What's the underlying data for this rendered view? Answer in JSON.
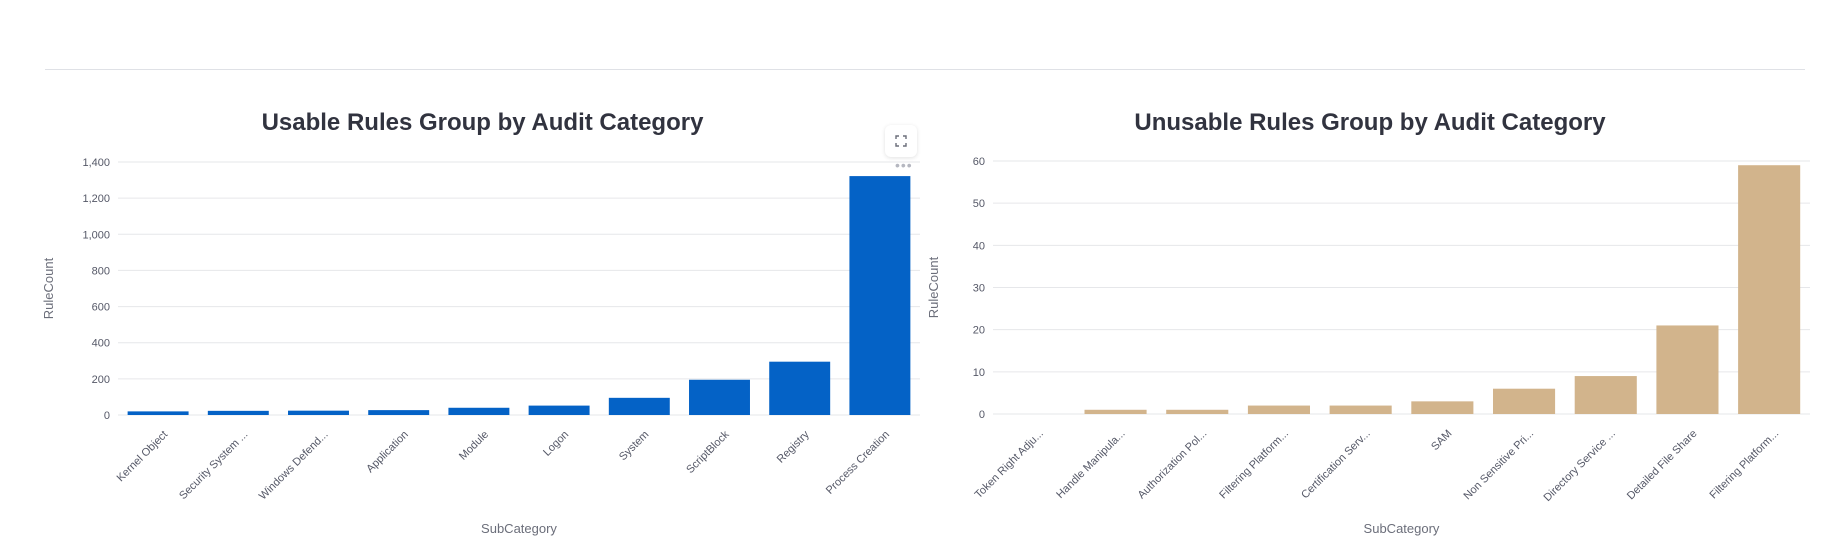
{
  "chart_data": [
    {
      "type": "bar",
      "title": "Usable Rules Group by Audit Category",
      "xlabel": "SubCategory",
      "ylabel": "RuleCount",
      "categories": [
        "Kernel Object",
        "Security System ...",
        "Windows Defend...",
        "Application",
        "Module",
        "Logon",
        "System",
        "ScriptBlock",
        "Registry",
        "Process Creation"
      ],
      "values": [
        20,
        23,
        24,
        27,
        40,
        52,
        95,
        195,
        295,
        1322
      ],
      "ylim": [
        0,
        1400
      ],
      "yticks": [
        0,
        200,
        400,
        600,
        800,
        1000,
        1200,
        1400
      ],
      "ytick_labels": [
        "0",
        "200",
        "400",
        "600",
        "800",
        "1,000",
        "1,200",
        "1,400"
      ],
      "color": "#0462c6",
      "grid": true
    },
    {
      "type": "bar",
      "title": "Unusable Rules Group by Audit Category",
      "xlabel": "SubCategory",
      "ylabel": "RuleCount",
      "categories": [
        "Token Right Adju...",
        "Handle Manipula...",
        "Authorization Pol...",
        "Filtering Platform...",
        "Certification Serv...",
        "SAM",
        "Non Sensitive Pri...",
        "Directory Service ...",
        "Detailed File Share",
        "Filtering Platform..."
      ],
      "values": [
        0,
        1,
        1,
        2,
        2,
        3,
        6,
        9,
        21,
        59
      ],
      "ylim": [
        0,
        60
      ],
      "yticks": [
        0,
        10,
        20,
        30,
        40,
        50,
        60
      ],
      "ytick_labels": [
        "0",
        "10",
        "20",
        "30",
        "40",
        "50",
        "60"
      ],
      "color": "#d2b48c",
      "grid": true
    }
  ]
}
